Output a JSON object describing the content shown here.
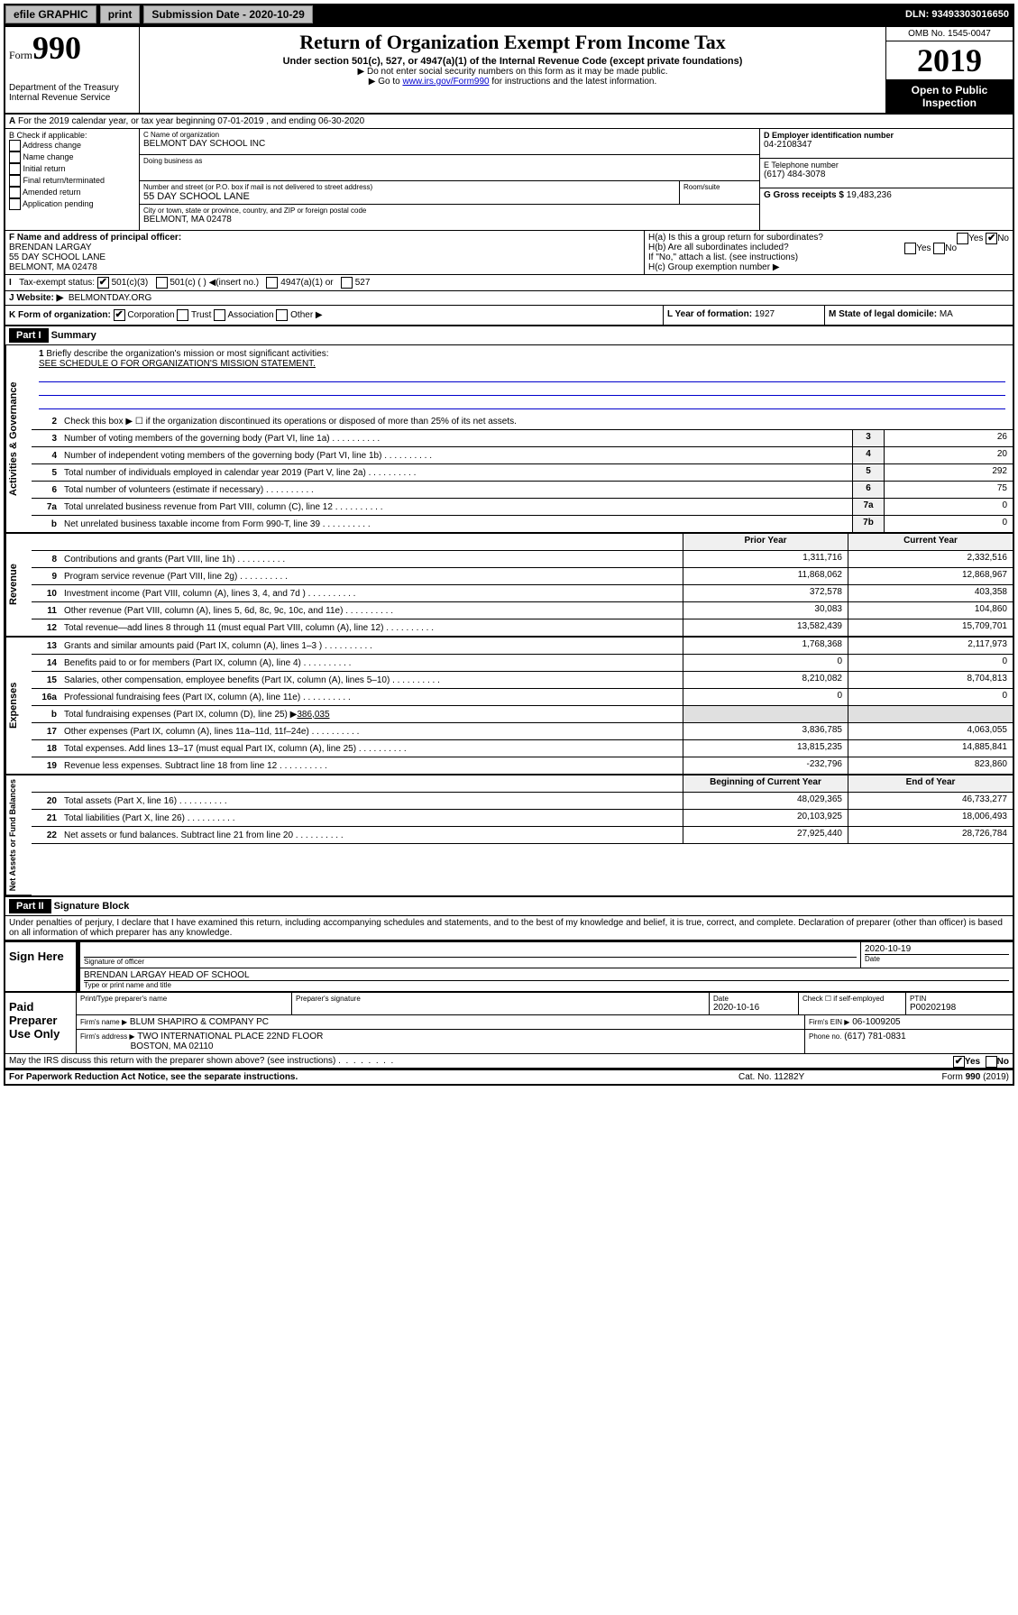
{
  "topbar": {
    "efile": "efile GRAPHIC",
    "print": "print",
    "submission_label": "Submission Date - 2020-10-29",
    "dln": "DLN: 93493303016650"
  },
  "header": {
    "form_word": "Form",
    "form_number": "990",
    "dept": "Department of the Treasury",
    "irs": "Internal Revenue Service",
    "title": "Return of Organization Exempt From Income Tax",
    "subtitle": "Under section 501(c), 527, or 4947(a)(1) of the Internal Revenue Code (except private foundations)",
    "note1": "▶ Do not enter social security numbers on this form as it may be made public.",
    "note2_pre": "▶ Go to ",
    "note2_link": "www.irs.gov/Form990",
    "note2_post": " for instructions and the latest information.",
    "omb": "OMB No. 1545-0047",
    "year": "2019",
    "open": "Open to Public Inspection"
  },
  "A": {
    "text": "For the 2019 calendar year, or tax year beginning 07-01-2019   , and ending 06-30-2020"
  },
  "B": {
    "label": "B Check if applicable:",
    "opts": [
      "Address change",
      "Name change",
      "Initial return",
      "Final return/terminated",
      "Amended return",
      "Application pending"
    ]
  },
  "C": {
    "name_label": "C Name of organization",
    "name": "BELMONT DAY SCHOOL INC",
    "dba_label": "Doing business as",
    "addr_label": "Number and street (or P.O. box if mail is not delivered to street address)",
    "room_label": "Room/suite",
    "addr": "55 DAY SCHOOL LANE",
    "city_label": "City or town, state or province, country, and ZIP or foreign postal code",
    "city": "BELMONT, MA  02478"
  },
  "D": {
    "label": "D Employer identification number",
    "value": "04-2108347"
  },
  "E": {
    "label": "E Telephone number",
    "value": "(617) 484-3078"
  },
  "G": {
    "label": "G Gross receipts $",
    "value": "19,483,236"
  },
  "F": {
    "label": "F Name and address of principal officer:",
    "name": "BRENDAN LARGAY",
    "addr1": "55 DAY SCHOOL LANE",
    "addr2": "BELMONT, MA  02478"
  },
  "H": {
    "a": "H(a)  Is this a group return for subordinates?",
    "b": "H(b)  Are all subordinates included?",
    "bnote": "If \"No,\" attach a list. (see instructions)",
    "c": "H(c)  Group exemption number ▶",
    "yes": "Yes",
    "no": "No"
  },
  "I": {
    "label": "Tax-exempt status:",
    "opts": [
      "501(c)(3)",
      "501(c) (   ) ◀(insert no.)",
      "4947(a)(1) or",
      "527"
    ]
  },
  "J": {
    "label": "J   Website: ▶",
    "value": "BELMONTDAY.ORG"
  },
  "K": {
    "label": "K Form of organization:",
    "opts": [
      "Corporation",
      "Trust",
      "Association",
      "Other ▶"
    ]
  },
  "L": {
    "label": "L Year of formation:",
    "value": "1927"
  },
  "M": {
    "label": "M State of legal domicile:",
    "value": "MA"
  },
  "part1": {
    "header": "Part I",
    "title": "Summary",
    "tab_ag": "Activities & Governance",
    "tab_rev": "Revenue",
    "tab_exp": "Expenses",
    "tab_na": "Net Assets or Fund Balances",
    "line1_label": "Briefly describe the organization's mission or most significant activities:",
    "line1_value": "SEE SCHEDULE O FOR ORGANIZATION'S MISSION STATEMENT.",
    "line2": "Check this box ▶ ☐  if the organization discontinued its operations or disposed of more than 25% of its net assets.",
    "lines_gov": [
      {
        "n": "3",
        "label": "Number of voting members of the governing body (Part VI, line 1a)",
        "box": "3",
        "val": "26"
      },
      {
        "n": "4",
        "label": "Number of independent voting members of the governing body (Part VI, line 1b)",
        "box": "4",
        "val": "20"
      },
      {
        "n": "5",
        "label": "Total number of individuals employed in calendar year 2019 (Part V, line 2a)",
        "box": "5",
        "val": "292"
      },
      {
        "n": "6",
        "label": "Total number of volunteers (estimate if necessary)",
        "box": "6",
        "val": "75"
      },
      {
        "n": "7a",
        "label": "Total unrelated business revenue from Part VIII, column (C), line 12",
        "box": "7a",
        "val": "0"
      },
      {
        "n": "b",
        "label": "Net unrelated business taxable income from Form 990-T, line 39",
        "box": "7b",
        "val": "0"
      }
    ],
    "col_prior": "Prior Year",
    "col_current": "Current Year",
    "lines_rev": [
      {
        "n": "8",
        "label": "Contributions and grants (Part VIII, line 1h)",
        "p": "1,311,716",
        "c": "2,332,516"
      },
      {
        "n": "9",
        "label": "Program service revenue (Part VIII, line 2g)",
        "p": "11,868,062",
        "c": "12,868,967"
      },
      {
        "n": "10",
        "label": "Investment income (Part VIII, column (A), lines 3, 4, and 7d )",
        "p": "372,578",
        "c": "403,358"
      },
      {
        "n": "11",
        "label": "Other revenue (Part VIII, column (A), lines 5, 6d, 8c, 9c, 10c, and 11e)",
        "p": "30,083",
        "c": "104,860"
      },
      {
        "n": "12",
        "label": "Total revenue—add lines 8 through 11 (must equal Part VIII, column (A), line 12)",
        "p": "13,582,439",
        "c": "15,709,701"
      }
    ],
    "lines_exp": [
      {
        "n": "13",
        "label": "Grants and similar amounts paid (Part IX, column (A), lines 1–3 )",
        "p": "1,768,368",
        "c": "2,117,973"
      },
      {
        "n": "14",
        "label": "Benefits paid to or for members (Part IX, column (A), line 4)",
        "p": "0",
        "c": "0"
      },
      {
        "n": "15",
        "label": "Salaries, other compensation, employee benefits (Part IX, column (A), lines 5–10)",
        "p": "8,210,082",
        "c": "8,704,813"
      },
      {
        "n": "16a",
        "label": "Professional fundraising fees (Part IX, column (A), line 11e)",
        "p": "0",
        "c": "0"
      }
    ],
    "line16b": {
      "n": "b",
      "label": "Total fundraising expenses (Part IX, column (D), line 25) ▶",
      "val": "386,035"
    },
    "lines_exp2": [
      {
        "n": "17",
        "label": "Other expenses (Part IX, column (A), lines 11a–11d, 11f–24e)",
        "p": "3,836,785",
        "c": "4,063,055"
      },
      {
        "n": "18",
        "label": "Total expenses. Add lines 13–17 (must equal Part IX, column (A), line 25)",
        "p": "13,815,235",
        "c": "14,885,841"
      },
      {
        "n": "19",
        "label": "Revenue less expenses. Subtract line 18 from line 12",
        "p": "-232,796",
        "c": "823,860"
      }
    ],
    "col_beg": "Beginning of Current Year",
    "col_end": "End of Year",
    "lines_na": [
      {
        "n": "20",
        "label": "Total assets (Part X, line 16)",
        "p": "48,029,365",
        "c": "46,733,277"
      },
      {
        "n": "21",
        "label": "Total liabilities (Part X, line 26)",
        "p": "20,103,925",
        "c": "18,006,493"
      },
      {
        "n": "22",
        "label": "Net assets or fund balances. Subtract line 21 from line 20",
        "p": "27,925,440",
        "c": "28,726,784"
      }
    ]
  },
  "part2": {
    "header": "Part II",
    "title": "Signature Block",
    "perjury": "Under penalties of perjury, I declare that I have examined this return, including accompanying schedules and statements, and to the best of my knowledge and belief, it is true, correct, and complete. Declaration of preparer (other than officer) is based on all information of which preparer has any knowledge.",
    "sign_here": "Sign Here",
    "sig_officer": "Signature of officer",
    "sig_date": "2020-10-19",
    "date_label": "Date",
    "officer_name": "BRENDAN LARGAY HEAD OF SCHOOL",
    "type_name": "Type or print name and title",
    "paid": "Paid Preparer Use Only",
    "prep_name_label": "Print/Type preparer's name",
    "prep_sig_label": "Preparer's signature",
    "prep_date_label": "Date",
    "prep_date": "2020-10-16",
    "check_self": "Check ☐ if self-employed",
    "ptin_label": "PTIN",
    "ptin": "P00202198",
    "firm_name_label": "Firm's name   ▶",
    "firm_name": "BLUM SHAPIRO & COMPANY PC",
    "firm_ein_label": "Firm's EIN ▶",
    "firm_ein": "06-1009205",
    "firm_addr_label": "Firm's address ▶",
    "firm_addr1": "TWO INTERNATIONAL PLACE 22ND FLOOR",
    "firm_addr2": "BOSTON, MA  02110",
    "phone_label": "Phone no.",
    "phone": "(617) 781-0831",
    "discuss": "May the IRS discuss this return with the preparer shown above? (see instructions)",
    "yes": "Yes",
    "no": "No"
  },
  "footer": {
    "pra": "For Paperwork Reduction Act Notice, see the separate instructions.",
    "cat": "Cat. No. 11282Y",
    "form": "Form 990 (2019)"
  }
}
